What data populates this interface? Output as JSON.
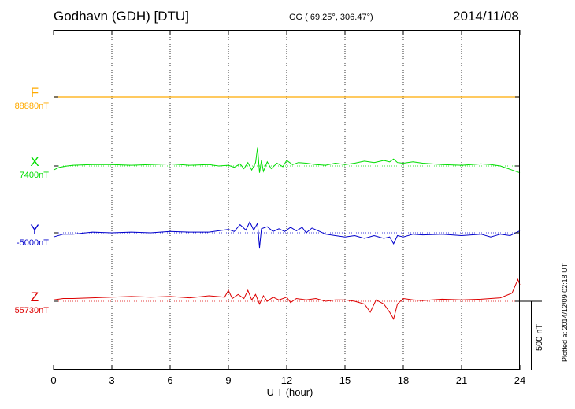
{
  "header": {
    "station": "Godhavn (GDH)  [DTU]",
    "coords": "GG ( 69.25°, 306.47°)",
    "date": "2014/11/08"
  },
  "footer": {
    "plotted": "Plotted at 2014/12/09 02:18 UT"
  },
  "scale": {
    "label": "500 nT",
    "value_nT": 500
  },
  "colors": {
    "F": "#ffaa00",
    "X": "#00dd00",
    "Y": "#0000cc",
    "Z": "#dd0000",
    "axis": "#000000"
  },
  "chart_data": {
    "type": "line",
    "xlabel": "U T (hour)",
    "xlim": [
      0,
      24
    ],
    "x_ticks": [
      "0",
      "3",
      "6",
      "9",
      "12",
      "15",
      "18",
      "21",
      "24"
    ],
    "series": [
      {
        "name": "F",
        "baseline_label": "88880nT",
        "x": [
          0,
          24
        ],
        "y": [
          0,
          0
        ]
      },
      {
        "name": "X",
        "baseline_label": "7400nT",
        "x": [
          0,
          0.3,
          0.7,
          1,
          2,
          3,
          4,
          5,
          6,
          7,
          8,
          8.5,
          9,
          9.3,
          9.6,
          9.8,
          10,
          10.2,
          10.4,
          10.5,
          10.6,
          10.7,
          10.8,
          11,
          11.2,
          11.5,
          11.8,
          12,
          12.3,
          12.6,
          13,
          13.5,
          14,
          14.5,
          15,
          15.5,
          16,
          16.5,
          17,
          17.3,
          17.5,
          17.7,
          18,
          18.5,
          19,
          20,
          21,
          22,
          22.5,
          23,
          23.3,
          23.6,
          24
        ],
        "y": [
          -30,
          -10,
          0,
          5,
          10,
          10,
          5,
          10,
          15,
          5,
          10,
          0,
          5,
          -10,
          15,
          -20,
          25,
          -30,
          25,
          135,
          -50,
          40,
          -40,
          30,
          -20,
          20,
          -5,
          40,
          10,
          25,
          20,
          10,
          5,
          20,
          10,
          20,
          35,
          25,
          40,
          30,
          50,
          25,
          20,
          30,
          20,
          10,
          5,
          15,
          10,
          0,
          -15,
          -30,
          -50
        ]
      },
      {
        "name": "Y",
        "baseline_label": "-5000nT",
        "x": [
          0,
          0.5,
          1,
          2,
          3,
          4,
          5,
          6,
          7,
          8,
          9,
          9.3,
          9.6,
          9.9,
          10.1,
          10.3,
          10.5,
          10.6,
          10.7,
          11,
          11.3,
          11.6,
          11.9,
          12.2,
          12.5,
          12.8,
          13,
          13.3,
          13.7,
          14,
          14.5,
          15,
          15.5,
          16,
          16.5,
          17,
          17.3,
          17.5,
          17.7,
          18,
          18.5,
          19,
          20,
          21,
          22,
          22.5,
          23,
          23.5,
          24
        ],
        "y": [
          -30,
          -10,
          -10,
          5,
          0,
          5,
          0,
          10,
          5,
          5,
          25,
          10,
          60,
          20,
          80,
          20,
          70,
          -110,
          30,
          45,
          10,
          30,
          10,
          40,
          15,
          40,
          0,
          35,
          10,
          -10,
          -20,
          -30,
          -20,
          -40,
          -20,
          -40,
          -30,
          -80,
          -20,
          -30,
          -10,
          -15,
          -10,
          -20,
          -10,
          -30,
          -10,
          -20,
          15
        ]
      },
      {
        "name": "Z",
        "baseline_label": "55730nT",
        "x": [
          0,
          0.5,
          1,
          2,
          3,
          4,
          5,
          6,
          7,
          8,
          8.8,
          9,
          9.2,
          9.5,
          9.8,
          10,
          10.2,
          10.4,
          10.6,
          10.8,
          11,
          11.3,
          11.6,
          12,
          12.2,
          12.5,
          13,
          13.5,
          14,
          14.5,
          15,
          15.5,
          16,
          16.3,
          16.6,
          17,
          17.3,
          17.5,
          17.7,
          18,
          18.5,
          19,
          20,
          21,
          22,
          23,
          23.6,
          23.9,
          24
        ],
        "y": [
          10,
          20,
          20,
          25,
          30,
          35,
          30,
          35,
          25,
          40,
          30,
          80,
          20,
          50,
          20,
          80,
          10,
          50,
          -20,
          40,
          0,
          30,
          10,
          30,
          -10,
          20,
          10,
          20,
          0,
          10,
          10,
          0,
          -20,
          -80,
          10,
          -20,
          -80,
          -130,
          -20,
          20,
          10,
          5,
          15,
          10,
          15,
          25,
          60,
          160,
          120
        ]
      }
    ]
  }
}
